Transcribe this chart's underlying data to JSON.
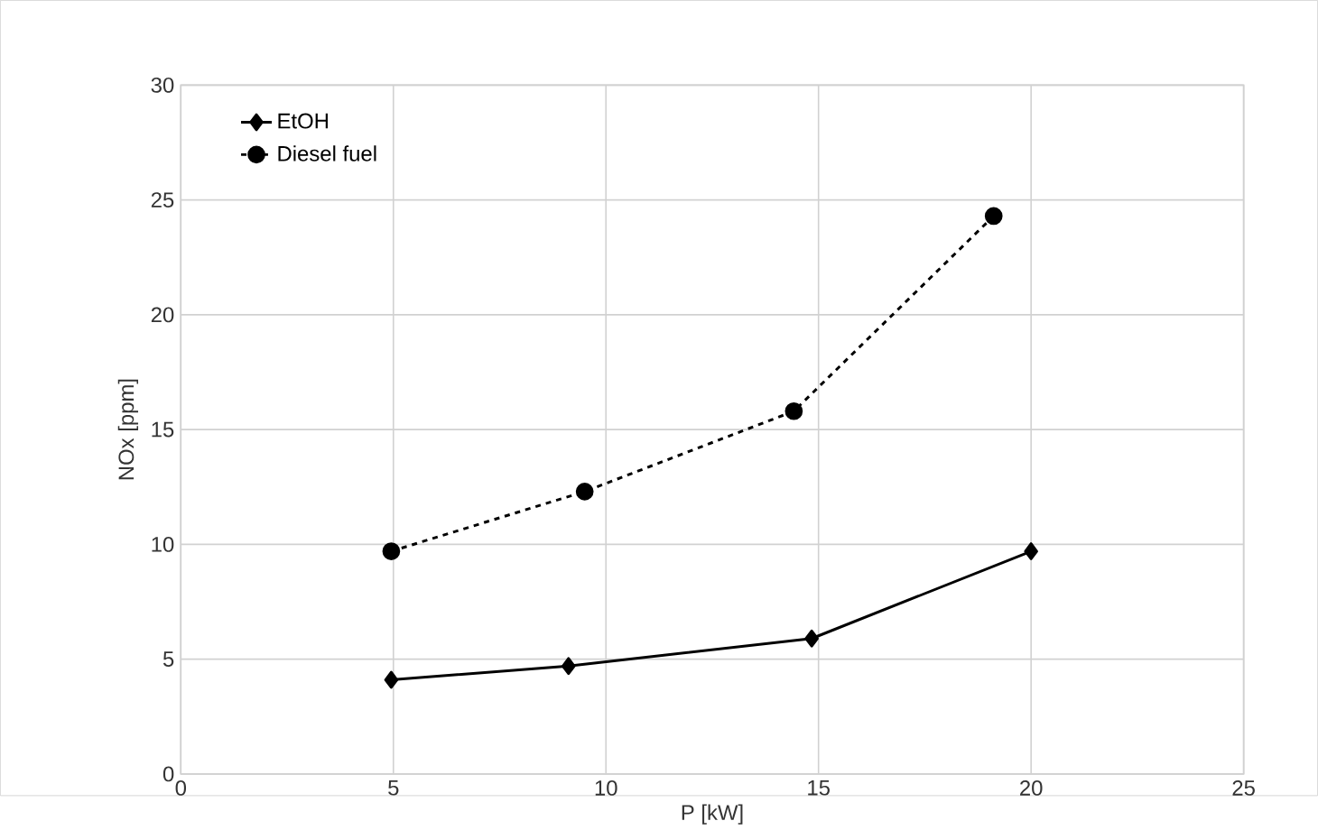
{
  "chart_data": {
    "type": "line",
    "xlabel": "P [kW]",
    "ylabel": "NOx [ppm]",
    "xlim": [
      0,
      25
    ],
    "ylim": [
      0,
      30
    ],
    "xticks": [
      0,
      5,
      10,
      15,
      20,
      25
    ],
    "yticks": [
      0,
      5,
      10,
      15,
      20,
      25,
      30
    ],
    "grid": true,
    "legend": "top left",
    "series": [
      {
        "name": "EtOH",
        "color": "#000000",
        "x": [
          4.95,
          9.12,
          14.84,
          20.0
        ],
        "values": [
          4.1,
          4.7,
          5.9,
          9.7
        ],
        "marker": "diamond",
        "line_style": "solid"
      },
      {
        "name": "Diesel fuel",
        "color": "#000000",
        "x": [
          4.95,
          9.5,
          14.42,
          19.12
        ],
        "values": [
          9.7,
          12.3,
          15.8,
          24.3
        ],
        "marker": "circle",
        "line_style": "dashed"
      }
    ]
  }
}
